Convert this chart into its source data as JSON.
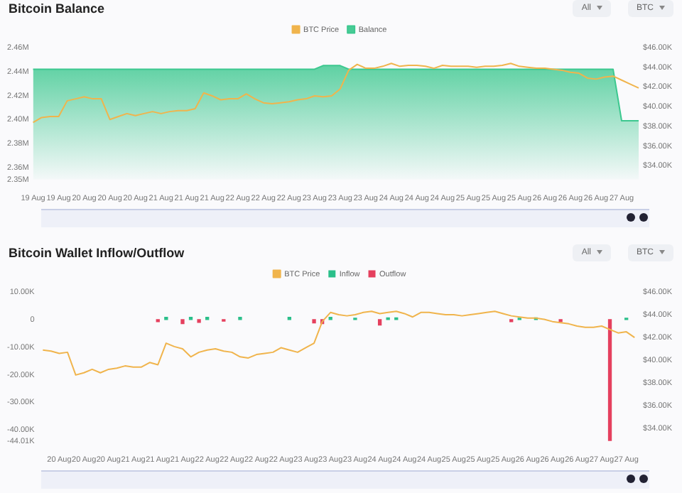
{
  "chart_data": [
    {
      "type": "area",
      "title": "Bitcoin Balance",
      "annotations": [
        "All",
        "BTC"
      ],
      "legend": "top",
      "categories": [
        "19 Aug",
        null,
        null,
        "19 Aug",
        null,
        null,
        "20 Aug",
        null,
        null,
        "20 Aug",
        null,
        null,
        "20 Aug",
        null,
        null,
        "21 Aug",
        null,
        null,
        "21 Aug",
        null,
        null,
        "21 Aug",
        null,
        null,
        "22 Aug",
        null,
        null,
        "22 Aug",
        null,
        null,
        "22 Aug",
        null,
        null,
        "23 Aug",
        null,
        null,
        "23 Aug",
        null,
        null,
        "23 Aug",
        null,
        null,
        "24 Aug",
        null,
        null,
        "24 Aug",
        null,
        null,
        "24 Aug",
        null,
        null,
        "25 Aug",
        null,
        null,
        "25 Aug",
        null,
        null,
        "25 Aug",
        null,
        null,
        "26 Aug",
        null,
        null,
        "26 Aug",
        null,
        null,
        "26 Aug",
        null,
        null,
        "27 Aug",
        null,
        null
      ],
      "ylim": [
        2.35,
        2.46
      ],
      "yticks": [
        {
          "value": 2.35,
          "label": "2.35M"
        },
        {
          "value": 2.36,
          "label": "2.36M"
        },
        {
          "value": 2.38,
          "label": "2.38M"
        },
        {
          "value": 2.4,
          "label": "2.40M"
        },
        {
          "value": 2.42,
          "label": "2.42M"
        },
        {
          "value": 2.44,
          "label": "2.44M"
        },
        {
          "value": 2.46,
          "label": "2.46M"
        }
      ],
      "y2lim": [
        32.6,
        46
      ],
      "y2ticks": [
        {
          "value": 34,
          "label": "$34.00K"
        },
        {
          "value": 36,
          "label": "$36.00K"
        },
        {
          "value": 38,
          "label": "$38.00K"
        },
        {
          "value": 40,
          "label": "$40.00K"
        },
        {
          "value": 42,
          "label": "$42.00K"
        },
        {
          "value": 44,
          "label": "$44.00K"
        },
        {
          "value": 46,
          "label": "$46.00K"
        }
      ],
      "series": [
        {
          "name": "BTC Price",
          "type": "line",
          "axis": "y2",
          "color": "#f0b44c",
          "values": [
            38.4,
            38.9,
            39.0,
            39.0,
            40.6,
            40.8,
            41.0,
            40.8,
            40.8,
            38.7,
            39.0,
            39.3,
            39.1,
            39.3,
            39.5,
            39.3,
            39.5,
            39.6,
            39.6,
            39.8,
            41.4,
            41.1,
            40.7,
            40.8,
            40.8,
            41.3,
            40.8,
            40.4,
            40.3,
            40.4,
            40.5,
            40.7,
            40.8,
            41.1,
            41.0,
            41.1,
            41.8,
            43.7,
            44.3,
            43.9,
            43.9,
            44.1,
            44.4,
            44.1,
            44.2,
            44.2,
            44.1,
            43.9,
            44.2,
            44.1,
            44.1,
            44.1,
            44.0,
            44.1,
            44.1,
            44.2,
            44.4,
            44.1,
            44.0,
            43.9,
            43.9,
            43.8,
            43.7,
            43.5,
            43.4,
            42.9,
            42.8,
            43.0,
            43.1,
            42.7,
            42.3,
            41.9
          ]
        },
        {
          "name": "Balance",
          "color": "#3cc88f",
          "values": [
            2.442,
            2.442,
            2.442,
            2.442,
            2.442,
            2.442,
            2.442,
            2.442,
            2.442,
            2.442,
            2.442,
            2.442,
            2.442,
            2.442,
            2.442,
            2.442,
            2.442,
            2.442,
            2.442,
            2.442,
            2.442,
            2.442,
            2.442,
            2.442,
            2.442,
            2.442,
            2.442,
            2.442,
            2.442,
            2.442,
            2.442,
            2.442,
            2.442,
            2.442,
            2.445,
            2.445,
            2.445,
            2.442,
            2.442,
            2.442,
            2.442,
            2.442,
            2.442,
            2.442,
            2.442,
            2.442,
            2.442,
            2.442,
            2.442,
            2.442,
            2.442,
            2.442,
            2.442,
            2.442,
            2.442,
            2.442,
            2.442,
            2.442,
            2.442,
            2.442,
            2.442,
            2.442,
            2.442,
            2.442,
            2.442,
            2.442,
            2.442,
            2.442,
            2.442,
            2.399,
            2.399,
            2.399
          ]
        }
      ]
    },
    {
      "type": "bar",
      "title": "Bitcoin Wallet Inflow/Outflow",
      "annotations": [
        "All",
        "BTC"
      ],
      "legend": "top",
      "categories": [
        null,
        null,
        "20 Aug",
        null,
        null,
        "20 Aug",
        null,
        null,
        "20 Aug",
        null,
        null,
        "21 Aug",
        null,
        null,
        "21 Aug",
        null,
        null,
        "21 Aug",
        null,
        null,
        "22 Aug",
        null,
        null,
        "22 Aug",
        null,
        null,
        "22 Aug",
        null,
        null,
        "22 Aug",
        null,
        null,
        "23 Aug",
        null,
        null,
        "23 Aug",
        null,
        null,
        "23 Aug",
        null,
        null,
        "24 Aug",
        null,
        null,
        "24 Aug",
        null,
        null,
        "24 Aug",
        null,
        null,
        "25 Aug",
        null,
        null,
        "25 Aug",
        null,
        null,
        "25 Aug",
        null,
        null,
        "26 Aug",
        null,
        null,
        "26 Aug",
        null,
        null,
        "26 Aug",
        null,
        null,
        "27 Aug",
        null,
        null,
        "27 Aug",
        null
      ],
      "ylim": [
        -44.01,
        10
      ],
      "yticks": [
        {
          "value": -44.01,
          "label": "-44.01K"
        },
        {
          "value": -40,
          "label": "-40.00K"
        },
        {
          "value": -30,
          "label": "-30.00K"
        },
        {
          "value": -20,
          "label": "-20.00K"
        },
        {
          "value": -10,
          "label": "-10.00K"
        },
        0,
        {
          "value": 10,
          "label": "10.00K"
        }
      ],
      "y2lim": [
        32.9,
        46
      ],
      "y2ticks": [
        {
          "value": 34,
          "label": "$34.00K"
        },
        {
          "value": 36,
          "label": "$36.00K"
        },
        {
          "value": 38,
          "label": "$38.00K"
        },
        {
          "value": 40,
          "label": "$40.00K"
        },
        {
          "value": 42,
          "label": "$42.00K"
        },
        {
          "value": 44,
          "label": "$44.00K"
        },
        {
          "value": 46,
          "label": "$46.00K"
        }
      ],
      "series": [
        {
          "name": "BTC Price",
          "type": "line",
          "axis": "y2",
          "color": "#f0b44c",
          "values": [
            40.9,
            40.8,
            40.6,
            40.7,
            38.7,
            38.9,
            39.2,
            38.9,
            39.2,
            39.3,
            39.5,
            39.4,
            39.4,
            39.8,
            39.6,
            41.5,
            41.2,
            41.0,
            40.3,
            40.7,
            40.9,
            41.0,
            40.8,
            40.7,
            40.3,
            40.2,
            40.5,
            40.6,
            40.7,
            41.1,
            40.9,
            40.7,
            41.1,
            41.5,
            43.4,
            44.2,
            44.0,
            43.9,
            44.0,
            44.2,
            44.3,
            44.1,
            44.2,
            44.3,
            44.1,
            43.8,
            44.2,
            44.2,
            44.1,
            44.0,
            44.0,
            43.9,
            44.0,
            44.1,
            44.2,
            44.3,
            44.1,
            43.9,
            43.8,
            43.7,
            43.7,
            43.6,
            43.4,
            43.3,
            43.2,
            43.0,
            42.9,
            42.9,
            43.0,
            42.7,
            42.4,
            42.5,
            42.0
          ]
        },
        {
          "name": "Inflow",
          "color": "#2bbf8a",
          "values": [
            null,
            null,
            null,
            null,
            null,
            null,
            null,
            null,
            null,
            null,
            null,
            null,
            null,
            null,
            null,
            0.8,
            null,
            null,
            0.8,
            null,
            0.8,
            null,
            null,
            null,
            0.8,
            null,
            null,
            null,
            null,
            null,
            0.8,
            null,
            null,
            null,
            null,
            0.8,
            null,
            null,
            0.5,
            null,
            null,
            null,
            0.6,
            0.6,
            null,
            null,
            null,
            null,
            null,
            null,
            null,
            null,
            null,
            null,
            null,
            null,
            null,
            null,
            0.5,
            null,
            0.6,
            null,
            null,
            null,
            null,
            null,
            null,
            null,
            null,
            null,
            null,
            0.5,
            null
          ]
        },
        {
          "name": "Outflow",
          "color": "#e5405e",
          "values": [
            null,
            null,
            null,
            null,
            null,
            null,
            null,
            null,
            null,
            null,
            null,
            null,
            null,
            null,
            -0.8,
            null,
            null,
            -1.5,
            null,
            -1.0,
            null,
            null,
            -0.6,
            null,
            null,
            null,
            null,
            null,
            null,
            null,
            null,
            null,
            null,
            -1.2,
            -1.5,
            null,
            null,
            null,
            null,
            null,
            null,
            -2.0,
            null,
            null,
            null,
            null,
            null,
            null,
            null,
            null,
            null,
            null,
            null,
            null,
            null,
            null,
            null,
            -0.8,
            null,
            null,
            null,
            null,
            null,
            -0.8,
            null,
            null,
            null,
            null,
            null,
            -44.01,
            null,
            null,
            null
          ]
        }
      ]
    }
  ]
}
